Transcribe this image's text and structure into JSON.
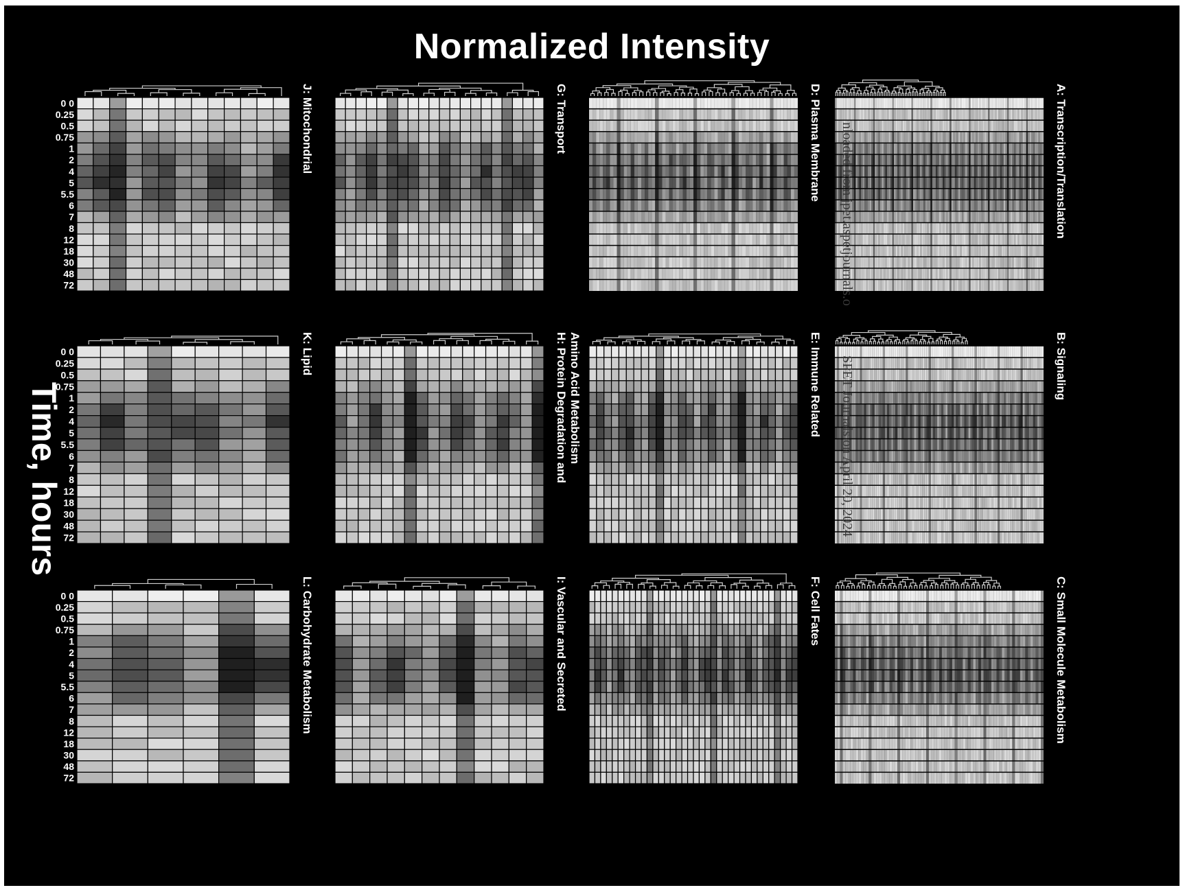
{
  "chart_data": {
    "type": "heatmap",
    "title": "Normalized Intensity",
    "ylabel": "Time, hours",
    "time_points": [
      "0 0",
      "0.25",
      "0.5",
      "0.75",
      "1",
      "2",
      "4",
      "5",
      "5.5",
      "6",
      "7",
      "8",
      "12",
      "18",
      "30",
      "48",
      "72"
    ],
    "color_scale": [
      "#000000",
      "#ffffff"
    ],
    "panels": [
      {
        "id": "J",
        "label": "J: Mitochondrial",
        "n_genes": 13,
        "row": 0,
        "col": 0,
        "show_time_labels": true
      },
      {
        "id": "G",
        "label": "G: Transport",
        "n_genes": 20,
        "row": 0,
        "col": 1,
        "show_time_labels": false
      },
      {
        "id": "D",
        "label": "D: Plasma Membrane",
        "n_genes": 60,
        "row": 0,
        "col": 2,
        "show_time_labels": false
      },
      {
        "id": "A",
        "label": "A: Transcription/Translation",
        "n_genes": 120,
        "row": 0,
        "col": 3,
        "show_time_labels": false
      },
      {
        "id": "K",
        "label": "K: Lipid",
        "n_genes": 9,
        "row": 1,
        "col": 0,
        "show_time_labels": true
      },
      {
        "id": "H",
        "label": "H: Protein Degradation and Amino Acid Metabolism",
        "label_lines": [
          "H: Protein Degradation and",
          "Amino Acid Metabolism"
        ],
        "n_genes": 18,
        "row": 1,
        "col": 1,
        "show_time_labels": false
      },
      {
        "id": "E",
        "label": "E: Immune Related",
        "n_genes": 28,
        "row": 1,
        "col": 2,
        "show_time_labels": false
      },
      {
        "id": "B",
        "label": "B: Signaling",
        "n_genes": 100,
        "row": 1,
        "col": 3,
        "show_time_labels": false
      },
      {
        "id": "L",
        "label": "L: Carbohydrate Metabolism",
        "n_genes": 6,
        "row": 2,
        "col": 0,
        "show_time_labels": true
      },
      {
        "id": "I",
        "label": "I: Vascular and Secreted",
        "n_genes": 12,
        "row": 2,
        "col": 1,
        "show_time_labels": false
      },
      {
        "id": "F",
        "label": "F: Cell Fates",
        "n_genes": 36,
        "row": 2,
        "col": 2,
        "show_time_labels": false
      },
      {
        "id": "C",
        "label": "C: Small Molecule Metabolism",
        "n_genes": 80,
        "row": 2,
        "col": 3,
        "show_time_labels": false
      }
    ]
  },
  "watermark": {
    "top_text": "nloaded from jpet.aspetjournals.o",
    "bottom_text": "SPET Journals on April 20, 2024"
  }
}
